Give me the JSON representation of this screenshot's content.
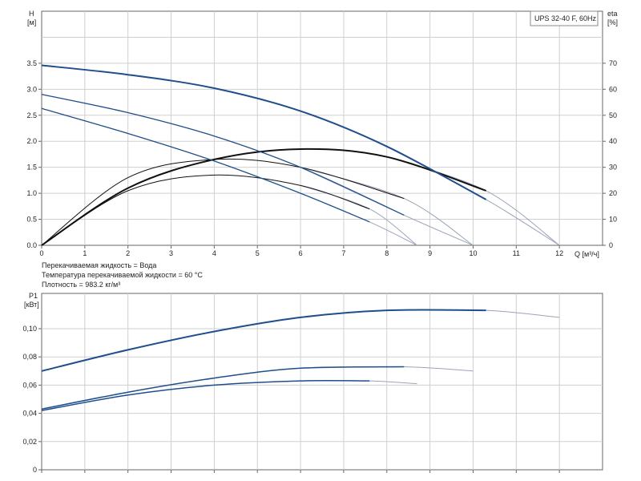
{
  "info_lines": [
    "Перекачиваемая жидкость = Вода",
    "Температура перекачиваемой жидкости = 60 °C",
    "Плотность = 983.2 кг/м³"
  ],
  "colors": {
    "head_curve": "#1f4e8c",
    "eta_curve": "#111111",
    "power_curve": "#1f4e8c",
    "extension": "#9aa4b8",
    "grid": "#cfcfcf",
    "axis": "#666666"
  },
  "chart_data": [
    {
      "type": "line",
      "title": "UPS 32-40 F, 60Hz",
      "ylabel": "H",
      "yunit": "[м]",
      "y2label": "eta",
      "y2unit": "[%]",
      "xlabel": "Q [м³/ч]",
      "xlim": [
        0,
        13
      ],
      "ylim": [
        0,
        4.5
      ],
      "y2lim": [
        0,
        90
      ],
      "x_ticks": [
        "0",
        "1",
        "2",
        "3",
        "4",
        "5",
        "6",
        "7",
        "8",
        "9",
        "10",
        "11",
        "12"
      ],
      "y_ticks": [
        "0.0",
        "0.5",
        "1.0",
        "1.5",
        "2.0",
        "2.5",
        "3.0",
        "3.5"
      ],
      "y2_ticks": [
        "0",
        "10",
        "20",
        "30",
        "40",
        "50",
        "60",
        "70"
      ],
      "grid": true,
      "head_series": [
        {
          "x": [
            0,
            2,
            4,
            6,
            8,
            10.3
          ],
          "y": [
            3.46,
            3.28,
            3.02,
            2.58,
            1.9,
            0.88
          ],
          "ext_x": [
            10.3,
            12
          ],
          "ext_y": [
            0.88,
            0
          ]
        },
        {
          "x": [
            0,
            2,
            4,
            6,
            8.4
          ],
          "y": [
            2.9,
            2.55,
            2.1,
            1.5,
            0.58
          ],
          "ext_x": [
            8.4,
            10
          ],
          "ext_y": [
            0.58,
            0
          ]
        },
        {
          "x": [
            0,
            2,
            4,
            6,
            7.6
          ],
          "y": [
            2.63,
            2.15,
            1.62,
            1.0,
            0.45
          ],
          "ext_x": [
            7.6,
            8.7
          ],
          "ext_y": [
            0.45,
            0
          ]
        }
      ],
      "eta_series": [
        {
          "x": [
            0,
            2,
            4,
            6,
            8,
            10.3
          ],
          "y": [
            0,
            22,
            33,
            37,
            34,
            21
          ],
          "ext_x": [
            10.3,
            12
          ],
          "ext_y": [
            21,
            0
          ]
        },
        {
          "x": [
            0,
            2,
            4,
            6,
            8.4
          ],
          "y": [
            0,
            26,
            33,
            30,
            18
          ],
          "ext_x": [
            8.4,
            10
          ],
          "ext_y": [
            18,
            0
          ]
        },
        {
          "x": [
            0,
            2,
            4,
            6,
            7.6
          ],
          "y": [
            0,
            21,
            27,
            23,
            14
          ],
          "ext_x": [
            7.6,
            8.7
          ],
          "ext_y": [
            14,
            0
          ]
        }
      ]
    },
    {
      "type": "line",
      "ylabel": "P1",
      "yunit": "[кВт]",
      "xlim": [
        0,
        13
      ],
      "ylim": [
        0,
        0.125
      ],
      "y_ticks": [
        "0",
        "0,02",
        "0,04",
        "0,06",
        "0,08",
        "0,10"
      ],
      "grid": true,
      "series": [
        {
          "x": [
            0,
            2,
            4,
            6,
            8,
            10.3
          ],
          "y": [
            0.07,
            0.085,
            0.098,
            0.108,
            0.113,
            0.113
          ],
          "ext_x": [
            10.3,
            12
          ],
          "ext_y": [
            0.113,
            0.108
          ]
        },
        {
          "x": [
            0,
            2,
            4,
            6,
            8.4
          ],
          "y": [
            0.043,
            0.055,
            0.065,
            0.072,
            0.073
          ],
          "ext_x": [
            8.4,
            10
          ],
          "ext_y": [
            0.073,
            0.07
          ]
        },
        {
          "x": [
            0,
            2,
            4,
            6,
            7.6
          ],
          "y": [
            0.042,
            0.053,
            0.06,
            0.063,
            0.063
          ],
          "ext_x": [
            7.6,
            8.7
          ],
          "ext_y": [
            0.063,
            0.061
          ]
        }
      ]
    }
  ]
}
